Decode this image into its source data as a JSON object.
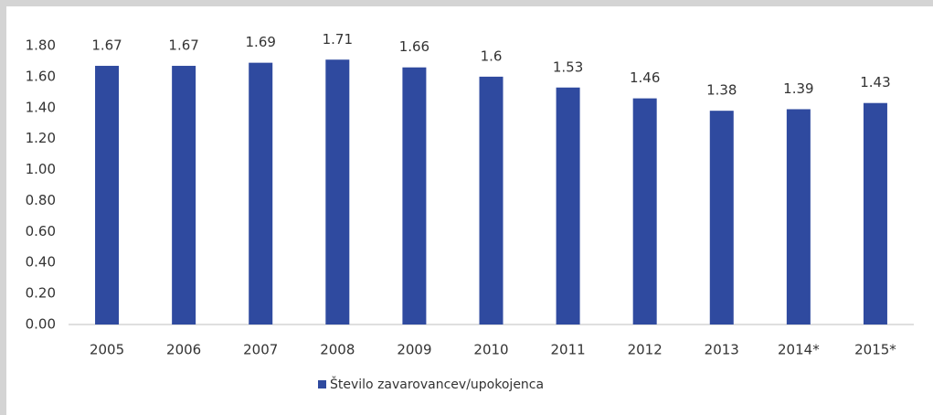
{
  "chart_data": {
    "type": "bar",
    "categories": [
      "2005",
      "2006",
      "2007",
      "2008",
      "2009",
      "2010",
      "2011",
      "2012",
      "2013",
      "2014*",
      "2015*"
    ],
    "series": [
      {
        "name": "Število zavarovancev/upokojenca",
        "color": "#2f4a9f",
        "values": [
          1.67,
          1.67,
          1.69,
          1.71,
          1.66,
          1.6,
          1.53,
          1.46,
          1.38,
          1.39,
          1.43
        ]
      }
    ],
    "ylim": [
      0,
      1.8
    ],
    "yticks": [
      {
        "value": 0,
        "label": "0.00"
      },
      {
        "value": 0.2,
        "label": "0.20"
      },
      {
        "value": 0.4,
        "label": "0.40"
      },
      {
        "value": 0.6,
        "label": "0.60"
      },
      {
        "value": 0.8,
        "label": "0.80"
      },
      {
        "value": 1.0,
        "label": "1.00"
      },
      {
        "value": 1.2,
        "label": "1.20"
      },
      {
        "value": 1.4,
        "label": "1.40"
      },
      {
        "value": 1.6,
        "label": "1.60"
      },
      {
        "value": 1.8,
        "label": "1.80"
      }
    ],
    "grid": false,
    "legend": "bottom"
  }
}
